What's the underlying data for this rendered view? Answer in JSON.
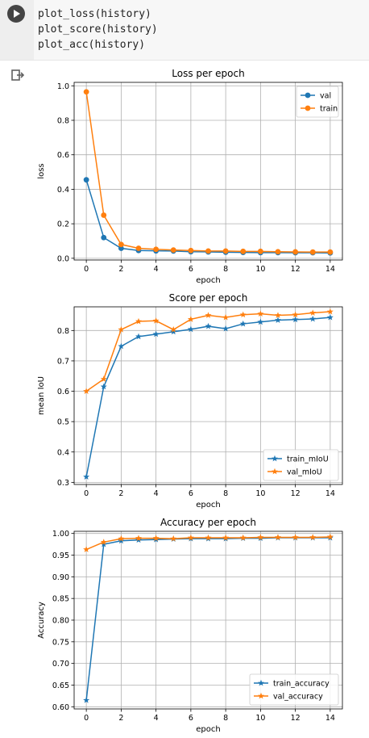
{
  "cell": {
    "code_lines": [
      "plot_loss(history)",
      "plot_score(history)",
      "plot_acc(history)"
    ]
  },
  "chart_data": [
    {
      "type": "line",
      "title": "Loss per epoch",
      "xlabel": "epoch",
      "ylabel": "loss",
      "x": [
        0,
        1,
        2,
        3,
        4,
        5,
        6,
        7,
        8,
        9,
        10,
        11,
        12,
        13,
        14
      ],
      "xlim": [
        -0.7,
        14.7
      ],
      "ylim": [
        -0.01,
        1.02
      ],
      "xticks": [
        0,
        2,
        4,
        6,
        8,
        10,
        12,
        14
      ],
      "yticks": [
        0.0,
        0.2,
        0.4,
        0.6,
        0.8,
        1.0
      ],
      "ytick_labels": [
        "0.0",
        "0.2",
        "0.4",
        "0.6",
        "0.8",
        "1.0"
      ],
      "grid": true,
      "legend": "top-right",
      "series": [
        {
          "name": "val",
          "color": "#1f77b4",
          "marker": "circle",
          "values": [
            0.455,
            0.12,
            0.058,
            0.045,
            0.043,
            0.042,
            0.038,
            0.037,
            0.035,
            0.034,
            0.033,
            0.033,
            0.032,
            0.032,
            0.031
          ]
        },
        {
          "name": "train",
          "color": "#ff7f0e",
          "marker": "circle",
          "values": [
            0.965,
            0.25,
            0.08,
            0.058,
            0.052,
            0.048,
            0.045,
            0.042,
            0.042,
            0.04,
            0.04,
            0.038,
            0.037,
            0.036,
            0.036
          ]
        }
      ]
    },
    {
      "type": "line",
      "title": "Score per epoch",
      "xlabel": "epoch",
      "ylabel": "mean IoU",
      "x": [
        0,
        1,
        2,
        3,
        4,
        5,
        6,
        7,
        8,
        9,
        10,
        11,
        12,
        13,
        14
      ],
      "xlim": [
        -0.7,
        14.7
      ],
      "ylim": [
        0.293,
        0.878
      ],
      "xticks": [
        0,
        2,
        4,
        6,
        8,
        10,
        12,
        14
      ],
      "yticks": [
        0.3,
        0.4,
        0.5,
        0.6,
        0.7,
        0.8
      ],
      "ytick_labels": [
        "0.3",
        "0.4",
        "0.5",
        "0.6",
        "0.7",
        "0.8"
      ],
      "grid": true,
      "legend": "bottom-right",
      "series": [
        {
          "name": "train_mIoU",
          "color": "#1f77b4",
          "marker": "star",
          "values": [
            0.318,
            0.615,
            0.748,
            0.78,
            0.788,
            0.796,
            0.804,
            0.814,
            0.806,
            0.822,
            0.828,
            0.834,
            0.836,
            0.838,
            0.843
          ]
        },
        {
          "name": "val_mIoU",
          "color": "#ff7f0e",
          "marker": "star",
          "values": [
            0.6,
            0.64,
            0.803,
            0.83,
            0.832,
            0.803,
            0.837,
            0.85,
            0.843,
            0.852,
            0.855,
            0.85,
            0.852,
            0.858,
            0.862
          ]
        }
      ]
    },
    {
      "type": "line",
      "title": "Accuracy per epoch",
      "xlabel": "epoch",
      "ylabel": "Accuracy",
      "x": [
        0,
        1,
        2,
        3,
        4,
        5,
        6,
        7,
        8,
        9,
        10,
        11,
        12,
        13,
        14
      ],
      "xlim": [
        -0.7,
        14.7
      ],
      "ylim": [
        0.595,
        1.005
      ],
      "xticks": [
        0,
        2,
        4,
        6,
        8,
        10,
        12,
        14
      ],
      "yticks": [
        0.6,
        0.65,
        0.7,
        0.75,
        0.8,
        0.85,
        0.9,
        0.95,
        1.0
      ],
      "ytick_labels": [
        "0.60",
        "0.65",
        "0.70",
        "0.75",
        "0.80",
        "0.85",
        "0.90",
        "0.95",
        "1.00"
      ],
      "grid": true,
      "legend": "bottom-right",
      "series": [
        {
          "name": "train_accuracy",
          "color": "#1f77b4",
          "marker": "star",
          "values": [
            0.615,
            0.975,
            0.983,
            0.985,
            0.986,
            0.987,
            0.988,
            0.988,
            0.988,
            0.989,
            0.989,
            0.99,
            0.99,
            0.99,
            0.99
          ]
        },
        {
          "name": "val_accuracy",
          "color": "#ff7f0e",
          "marker": "star",
          "values": [
            0.963,
            0.98,
            0.988,
            0.989,
            0.989,
            0.988,
            0.99,
            0.99,
            0.99,
            0.99,
            0.991,
            0.991,
            0.991,
            0.991,
            0.992
          ]
        }
      ]
    }
  ]
}
